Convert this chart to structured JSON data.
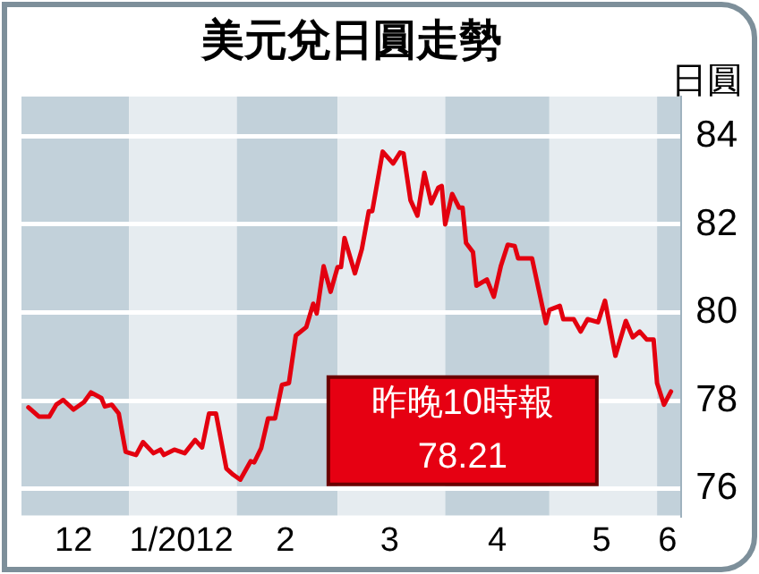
{
  "chart_data": {
    "type": "line",
    "title": "美元兌日圓走勢",
    "ylabel": "日圓",
    "x": [
      "2011-12-03",
      "2011-12-06",
      "2011-12-09",
      "2011-12-11",
      "2011-12-13",
      "2011-12-16",
      "2011-12-19",
      "2011-12-21",
      "2011-12-24",
      "2011-12-25",
      "2011-12-27",
      "2011-12-29",
      "2011-12-31",
      "2012-01-03",
      "2012-01-05",
      "2012-01-08",
      "2012-01-10",
      "2012-01-11",
      "2012-01-14",
      "2012-01-17",
      "2012-01-20",
      "2012-01-22",
      "2012-01-24",
      "2012-01-26",
      "2012-01-29",
      "2012-01-31",
      "2012-02-02",
      "2012-02-05",
      "2012-02-06",
      "2012-02-08",
      "2012-02-10",
      "2012-02-12",
      "2012-02-14",
      "2012-02-16",
      "2012-02-18",
      "2012-02-21",
      "2012-02-23",
      "2012-02-24",
      "2012-02-26",
      "2012-02-28",
      "2012-03-01",
      "2012-03-02",
      "2012-03-03",
      "2012-03-06",
      "2012-03-08",
      "2012-03-10",
      "2012-03-11",
      "2012-03-14",
      "2012-03-17",
      "2012-03-19",
      "2012-03-20",
      "2012-03-22",
      "2012-03-24",
      "2012-03-26",
      "2012-03-28",
      "2012-03-30",
      "2012-03-31",
      "2012-04-01",
      "2012-04-03",
      "2012-04-05",
      "2012-04-06",
      "2012-04-07",
      "2012-04-09",
      "2012-04-10",
      "2012-04-13",
      "2012-04-15",
      "2012-04-17",
      "2012-04-19",
      "2012-04-21",
      "2012-04-22",
      "2012-04-26",
      "2012-04-30",
      "2012-05-01",
      "2012-05-04",
      "2012-05-05",
      "2012-05-08",
      "2012-05-10",
      "2012-05-12",
      "2012-05-15",
      "2012-05-17",
      "2012-05-20",
      "2012-05-23",
      "2012-05-25",
      "2012-05-27",
      "2012-05-29",
      "2012-05-31",
      "2012-06-01",
      "2012-06-03",
      "2012-06-05"
    ],
    "series": [
      {
        "color": "#e3000f",
        "values": [
          77.85,
          77.64,
          77.64,
          77.91,
          78.02,
          77.8,
          77.97,
          78.19,
          78.06,
          77.87,
          77.91,
          77.71,
          76.84,
          76.77,
          77.06,
          76.81,
          76.89,
          76.77,
          76.89,
          76.81,
          77.11,
          76.94,
          77.71,
          77.71,
          76.46,
          76.32,
          76.21,
          76.63,
          76.6,
          76.92,
          77.6,
          77.6,
          78.36,
          78.4,
          79.48,
          79.67,
          80.2,
          79.98,
          81.05,
          80.47,
          81.03,
          81.03,
          81.69,
          80.89,
          81.44,
          82.3,
          82.3,
          83.65,
          83.38,
          83.63,
          83.61,
          82.55,
          82.2,
          83.17,
          82.48,
          82.83,
          82.87,
          82.0,
          82.69,
          82.38,
          82.38,
          81.58,
          81.37,
          80.61,
          80.75,
          80.36,
          81.05,
          81.54,
          81.51,
          81.23,
          81.23,
          79.76,
          80.06,
          80.15,
          79.85,
          79.85,
          79.57,
          79.85,
          79.78,
          80.27,
          79.02,
          79.81,
          79.44,
          79.57,
          79.39,
          79.39,
          78.4,
          77.91,
          78.21
        ]
      }
    ],
    "xlim": [
      "2011-12-01",
      "2012-06-08"
    ],
    "xticks": [
      {
        "value": "2011-12-16",
        "label": "12"
      },
      {
        "value": "2012-01-16",
        "label": "1/2012"
      },
      {
        "value": "2012-02-15",
        "label": "2"
      },
      {
        "value": "2012-03-16",
        "label": "3"
      },
      {
        "value": "2012-04-16",
        "label": "4"
      },
      {
        "value": "2012-05-16",
        "label": "5"
      },
      {
        "value": "2012-06-04",
        "label": "6"
      }
    ],
    "ylim": [
      75.4,
      84.9
    ],
    "yticks": [
      76,
      78,
      80,
      82,
      84
    ],
    "grid": "y",
    "legend": false,
    "marker": "none",
    "line_style": "solid",
    "bands": [
      {
        "axis": "x",
        "from": "2011-12-01",
        "to": "2012-01-01",
        "color": "#c2d1da"
      },
      {
        "axis": "x",
        "from": "2012-01-01",
        "to": "2012-02-01",
        "color": "#e6ecf0"
      },
      {
        "axis": "x",
        "from": "2012-02-01",
        "to": "2012-03-01",
        "color": "#c2d1da"
      },
      {
        "axis": "x",
        "from": "2012-03-01",
        "to": "2012-04-01",
        "color": "#e6ecf0"
      },
      {
        "axis": "x",
        "from": "2012-04-01",
        "to": "2012-05-01",
        "color": "#c2d1da"
      },
      {
        "axis": "x",
        "from": "2012-05-01",
        "to": "2012-06-01",
        "color": "#e6ecf0"
      },
      {
        "axis": "x",
        "from": "2012-06-01",
        "to": "2012-06-08",
        "color": "#c2d1da"
      }
    ],
    "annotations": [
      "昨晚10時報",
      "78.21"
    ]
  }
}
